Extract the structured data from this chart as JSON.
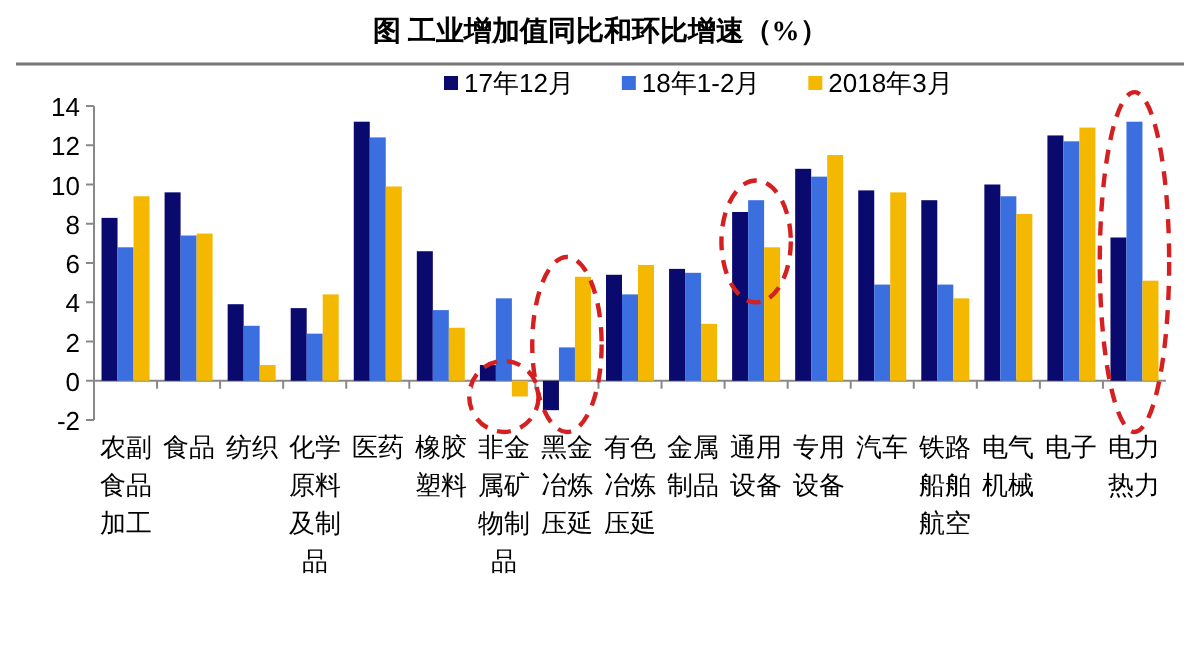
{
  "chart_data": {
    "type": "bar",
    "title": "图  工业增加值同比和环比增速（%）",
    "categories": [
      "农副食品加工",
      "食品",
      "纺织",
      "化学原料及制品",
      "医药",
      "橡胶塑料",
      "非金属矿物制品",
      "黑金冶炼压延",
      "有色冶炼压延",
      "金属制品",
      "通用设备",
      "专用设备",
      "汽车",
      "铁路船舶航空",
      "电气机械",
      "电子",
      "电力热力"
    ],
    "series": [
      {
        "name": "17年12月",
        "color": "#0a0a6e",
        "values": [
          8.3,
          9.6,
          3.9,
          3.7,
          13.2,
          6.6,
          0.8,
          -1.5,
          5.4,
          5.7,
          8.6,
          10.8,
          9.7,
          9.2,
          10.0,
          12.5,
          7.3
        ]
      },
      {
        "name": "18年1-2月",
        "color": "#3b6fe0",
        "values": [
          6.8,
          7.4,
          2.8,
          2.4,
          12.4,
          3.6,
          4.2,
          1.7,
          4.4,
          5.5,
          9.2,
          10.4,
          4.9,
          4.9,
          9.4,
          12.2,
          13.2
        ]
      },
      {
        "name": "2018年3月",
        "color": "#f5b800",
        "values": [
          9.4,
          7.5,
          0.8,
          4.4,
          9.9,
          2.7,
          -0.8,
          5.3,
          5.9,
          2.9,
          6.8,
          11.5,
          9.6,
          4.2,
          8.5,
          12.9,
          5.1
        ]
      }
    ],
    "ylim": [
      -2,
      14
    ],
    "yticks": [
      -2,
      0,
      2,
      4,
      6,
      8,
      10,
      12,
      14
    ],
    "grid": false,
    "legend": "top"
  }
}
